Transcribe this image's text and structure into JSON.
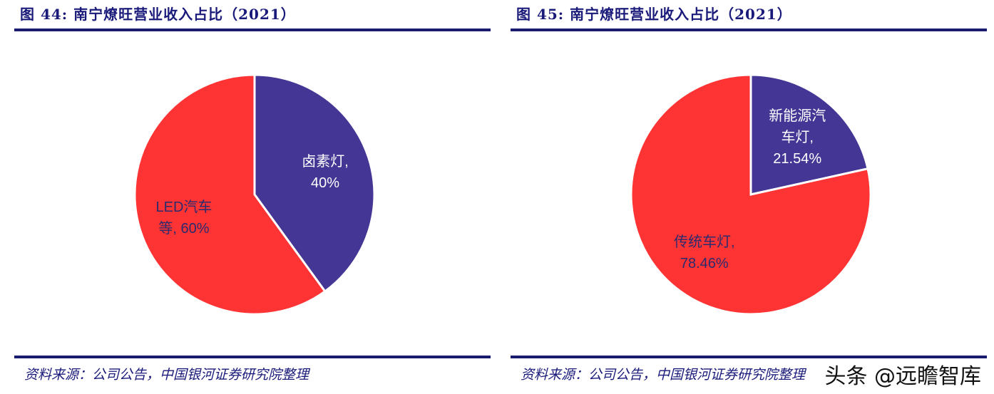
{
  "charts": [
    {
      "figure_title": "图  44:  南宁燎旺营业收入占比（2021）",
      "source": "资料来源：公司公告，中国银河证券研究院整理"
    },
    {
      "figure_title": "图  45:  南宁燎旺营业收入占比（2021）",
      "source": "资料来源：公司公告，中国银河证券研究院整理"
    }
  ],
  "watermark": "头条 @远瞻智库",
  "chart_data": [
    {
      "type": "pie",
      "title": "图  44:  南宁燎旺营业收入占比（2021）",
      "slices": [
        {
          "label_lines": [
            "卤素灯,",
            "40%"
          ],
          "value": 40,
          "color": "#433694",
          "text_color": "#ffffff"
        },
        {
          "label_lines": [
            "LED汽车",
            "等, 60%"
          ],
          "value": 60,
          "color": "#fe3334",
          "text_color": "#2b2b6e"
        }
      ],
      "start": "12 o'clock",
      "direction": "clockwise",
      "legend": "none"
    },
    {
      "type": "pie",
      "title": "图  45:  南宁燎旺营业收入占比（2021）",
      "slices": [
        {
          "label_lines": [
            "新能源汽",
            "车灯,",
            "21.54%"
          ],
          "value": 21.54,
          "color": "#433694",
          "text_color": "#ffffff"
        },
        {
          "label_lines": [
            "传统车灯,",
            "78.46%"
          ],
          "value": 78.46,
          "color": "#fe3334",
          "text_color": "#2b2b6e"
        }
      ],
      "start": "12 o'clock",
      "direction": "clockwise",
      "legend": "none"
    }
  ]
}
